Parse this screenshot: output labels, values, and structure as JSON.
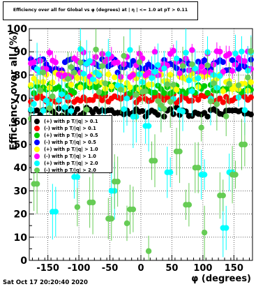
{
  "chart_data": {
    "type": "scatter",
    "title": "Efficiency over all for Global vs φ (degrees) at | η | <= 1.0 at pT > 0.11",
    "xlabel": "φ (degrees)",
    "ylabel": "Efficiency over all (%)",
    "xlim": [
      -180,
      180
    ],
    "ylim": [
      0,
      100
    ],
    "x_ticks": [
      "-150",
      "-100",
      "-50",
      "0",
      "50",
      "100",
      "150"
    ],
    "y_ticks": [
      "0",
      "10",
      "20",
      "30",
      "40",
      "50",
      "60",
      "70",
      "80",
      "90",
      "100"
    ],
    "grid": true,
    "legend_position": "left-center",
    "series": [
      {
        "name": "(+) with p T/|q| > 0.1",
        "color": "#000000",
        "base": 64,
        "spread": 2,
        "dips": [],
        "err": 1
      },
      {
        "name": "(-) with p T/|q| > 0.1",
        "color": "#ff0000",
        "base": 70,
        "spread": 2,
        "dips": [],
        "err": 1
      },
      {
        "name": "(+) with p T/|q| > 0.5",
        "color": "#00cc00",
        "base": 74,
        "spread": 2,
        "dips": [],
        "err": 1.5
      },
      {
        "name": "(-) with p T/|q| > 0.5",
        "color": "#0000ff",
        "base": 84,
        "spread": 3,
        "dips": [],
        "err": 1.5
      },
      {
        "name": "(+) with p T/|q| > 1.0",
        "color": "#ffff00",
        "base": 77,
        "spread": 4,
        "dips": [],
        "err": 2
      },
      {
        "name": "(-) with p T/|q| > 1.0",
        "color": "#ff00ff",
        "base": 85,
        "spread": 6,
        "dips": [],
        "err": 3
      },
      {
        "name": "(+) with p T/|q| > 2.0",
        "color": "#00ffff",
        "base": 78,
        "spread": 14,
        "dips": [
          [
            -140,
            21
          ],
          [
            -105,
            36
          ],
          [
            -60,
            56
          ],
          [
            -45,
            30
          ],
          [
            -10,
            62
          ],
          [
            10,
            58
          ],
          [
            45,
            38
          ],
          [
            100,
            37
          ],
          [
            135,
            14
          ],
          [
            145,
            38
          ]
        ],
        "err": 8
      },
      {
        "name": "(-) with p T/|q| > 2.0",
        "color": "#66cc55",
        "base": 75,
        "spread": 18,
        "dips": [
          [
            -170,
            33
          ],
          [
            -130,
            55
          ],
          [
            -102,
            23
          ],
          [
            -80,
            25
          ],
          [
            -50,
            18
          ],
          [
            -40,
            34
          ],
          [
            -20,
            16
          ],
          [
            -15,
            22
          ],
          [
            15,
            4
          ],
          [
            20,
            43
          ],
          [
            60,
            47
          ],
          [
            75,
            24
          ],
          [
            90,
            40
          ],
          [
            102,
            12
          ],
          [
            130,
            28
          ],
          [
            150,
            37
          ],
          [
            165,
            50
          ]
        ],
        "err": 8
      }
    ]
  },
  "header": {
    "title": "Efficiency over all for Global vs φ (degrees) at | η | <= 1.0 at pT > 0.11"
  },
  "footer": {
    "date": "Sat Oct 17 20:20:40 2020"
  }
}
